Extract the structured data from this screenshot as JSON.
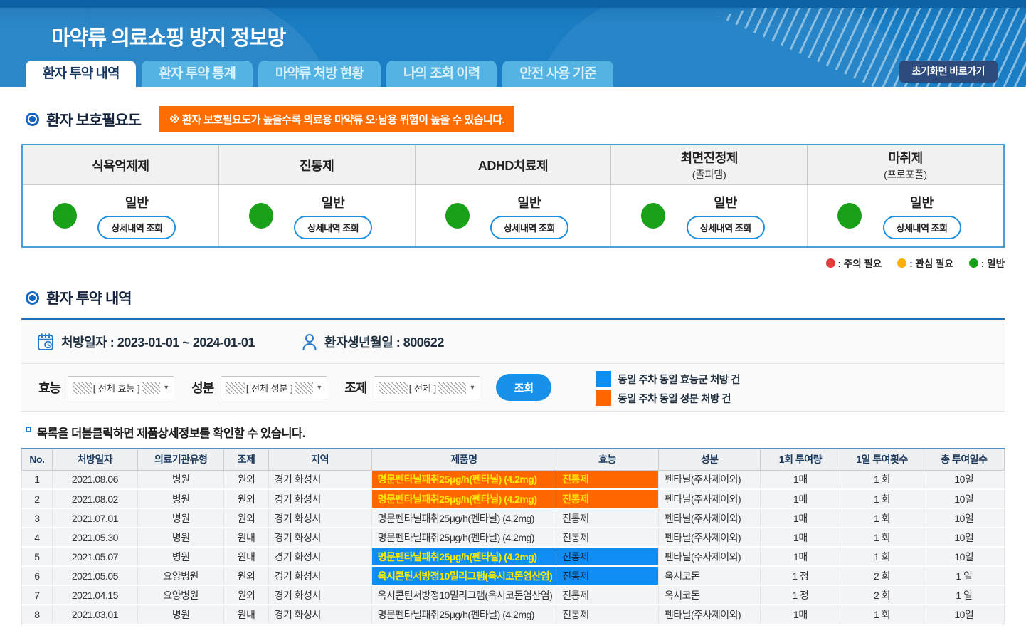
{
  "header": {
    "title": "마약류 의료쇼핑 방지 정보망",
    "tabs": [
      {
        "label": "환자 투약 내역",
        "active": true
      },
      {
        "label": "환자 투약 통계",
        "active": false
      },
      {
        "label": "마약류 처방 현황",
        "active": false
      },
      {
        "label": "나의 조회 이력",
        "active": false
      },
      {
        "label": "안전 사용 기준",
        "active": false
      }
    ],
    "home_button": "초기화면 바로가기"
  },
  "protection": {
    "section_title": "환자 보호필요도",
    "notice": "※ 환자 보호필요도가 높을수록 의료용 마약류 오·남용 위험이 높을 수 있습니다.",
    "detail_button": "상세내역 조회",
    "categories": [
      {
        "title": "식욕억제제",
        "subtitle": "",
        "status": "일반",
        "status_color": "#18a018"
      },
      {
        "title": "진통제",
        "subtitle": "",
        "status": "일반",
        "status_color": "#18a018"
      },
      {
        "title": "ADHD치료제",
        "subtitle": "",
        "status": "일반",
        "status_color": "#18a018"
      },
      {
        "title": "최면진정제",
        "subtitle": "(졸피뎀)",
        "status": "일반",
        "status_color": "#18a018"
      },
      {
        "title": "마취제",
        "subtitle": "(프로포폴)",
        "status": "일반",
        "status_color": "#18a018"
      }
    ],
    "legend": [
      {
        "label": ": 주의 필요",
        "color": "#e23b3b"
      },
      {
        "label": ": 관심 필요",
        "color": "#ffaf00"
      },
      {
        "label": ": 일반",
        "color": "#18a018"
      }
    ]
  },
  "history": {
    "section_title": "환자 투약 내역",
    "prescription_period": "처방일자 : 2023-01-01 ~ 2024-01-01",
    "patient_birth": "환자생년월일 : 800622",
    "filters": [
      {
        "label": "효능",
        "value": "[ 전체 효능 ]"
      },
      {
        "label": "성분",
        "value": "[ 전체 성분 ]"
      },
      {
        "label": "조제",
        "value": "[ 전체 ]"
      }
    ],
    "search_button": "조회",
    "highlight_legend": [
      {
        "label": "동일 주차 동일 효능군 처방 건",
        "color": "#0d8ff2"
      },
      {
        "label": "동일 주차 동일 성분 처방 건",
        "color": "#ff6600"
      }
    ],
    "note": "목록을 더블클릭하면 제품상세정보를 확인할 수 있습니다."
  },
  "table": {
    "columns": [
      "No.",
      "처방일자",
      "의료기관유형",
      "조제",
      "지역",
      "제품명",
      "효능",
      "성분",
      "1회 투여량",
      "1일 투여횟수",
      "총 투여일수"
    ],
    "rows": [
      {
        "no": "1",
        "date": "2021.08.06",
        "org": "병원",
        "dispense": "원외",
        "region": "경기 화성시",
        "product": "명문펜타닐패취25μg/h(펜타닐) (4.2mg)",
        "efficacy": "진통제",
        "ingredient": "펜타닐(주사제이외)",
        "dose": "1매",
        "freq": "1 회",
        "days": "10일",
        "highlight": "orange"
      },
      {
        "no": "2",
        "date": "2021.08.02",
        "org": "병원",
        "dispense": "원외",
        "region": "경기 화성시",
        "product": "명문펜타닐패취25μg/h(펜타닐) (4.2mg)",
        "efficacy": "진통제",
        "ingredient": "펜타닐(주사제이외)",
        "dose": "1매",
        "freq": "1 회",
        "days": "10일",
        "highlight": "orange"
      },
      {
        "no": "3",
        "date": "2021.07.01",
        "org": "병원",
        "dispense": "원외",
        "region": "경기 화성시",
        "product": "명문펜타닐패취25μg/h(펜타닐) (4.2mg)",
        "efficacy": "진통제",
        "ingredient": "펜타닐(주사제이외)",
        "dose": "1매",
        "freq": "1 회",
        "days": "10일",
        "highlight": null
      },
      {
        "no": "4",
        "date": "2021.05.30",
        "org": "병원",
        "dispense": "원내",
        "region": "경기 화성시",
        "product": "명문펜타닐패취25μg/h(펜타닐) (4.2mg)",
        "efficacy": "진통제",
        "ingredient": "펜타닐(주사제이외)",
        "dose": "1매",
        "freq": "1 회",
        "days": "10일",
        "highlight": null
      },
      {
        "no": "5",
        "date": "2021.05.07",
        "org": "병원",
        "dispense": "원내",
        "region": "경기 화성시",
        "product": "명문펜타닐패취25μg/h(펜타닐) (4.2mg)",
        "efficacy": "진통제",
        "ingredient": "펜타닐(주사제이외)",
        "dose": "1매",
        "freq": "1 회",
        "days": "10일",
        "highlight": "blue"
      },
      {
        "no": "6",
        "date": "2021.05.05",
        "org": "요양병원",
        "dispense": "원외",
        "region": "경기 화성시",
        "product": "옥시콘틴서방정10밀리그램(옥시코돈염산염)",
        "efficacy": "진통제",
        "ingredient": "옥시코돈",
        "dose": "1 정",
        "freq": "2 회",
        "days": "1 일",
        "highlight": "blue"
      },
      {
        "no": "7",
        "date": "2021.04.15",
        "org": "요양병원",
        "dispense": "원외",
        "region": "경기 화성시",
        "product": "옥시콘틴서방정10밀리그램(옥시코돈염산염)",
        "efficacy": "진통제",
        "ingredient": "옥시코돈",
        "dose": "1 정",
        "freq": "2 회",
        "days": "1 일",
        "highlight": null
      },
      {
        "no": "8",
        "date": "2021.03.01",
        "org": "병원",
        "dispense": "원내",
        "region": "경기 화성시",
        "product": "명문펜타닐패취25μg/h(펜타닐) (4.2mg)",
        "efficacy": "진통제",
        "ingredient": "펜타닐(주사제이외)",
        "dose": "1매",
        "freq": "1 회",
        "days": "10일",
        "highlight": null
      }
    ]
  },
  "colors": {
    "header_blue": "#1b7ec4",
    "accent_blue": "#1f6fbe",
    "highlight_orange": "#ff6600",
    "highlight_blue": "#0e8ef5",
    "highlight_text_yellow": "#ffe900",
    "status_green": "#18a018",
    "status_red": "#e23b3b",
    "status_amber": "#ffaf00"
  }
}
